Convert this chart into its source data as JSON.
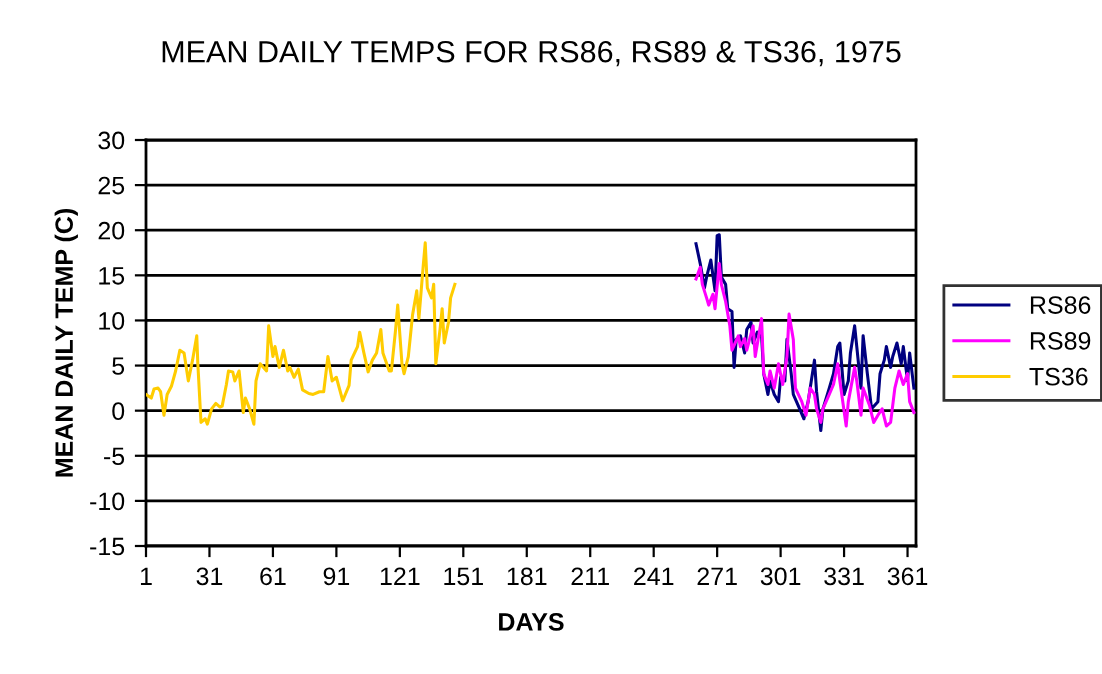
{
  "chart_data": {
    "type": "line",
    "title": "MEAN DAILY TEMPS FOR RS86, RS89 & TS36, 1975",
    "xlabel": "DAYS",
    "ylabel": "MEAN DAILY TEMP (C)",
    "xlim": [
      1,
      365
    ],
    "xticks": [
      1,
      31,
      61,
      91,
      121,
      151,
      181,
      211,
      241,
      271,
      301,
      331,
      361
    ],
    "ylim": [
      -15,
      30
    ],
    "yticks": [
      -15,
      -10,
      -5,
      0,
      5,
      10,
      15,
      20,
      25,
      30
    ],
    "grid": "y",
    "legend": "right",
    "marker": "none",
    "line_style": "solid",
    "series": [
      {
        "name": "RS86",
        "color": "#000080",
        "x": [
          261,
          263,
          265,
          266,
          268,
          270,
          271,
          272,
          273,
          275,
          276,
          278,
          279,
          280,
          282,
          284,
          285,
          287,
          288,
          290,
          292,
          293,
          295,
          296,
          298,
          300,
          301,
          303,
          304,
          306,
          307,
          310,
          312,
          314,
          317,
          318,
          320,
          321,
          324,
          326,
          328,
          329,
          331,
          333,
          334,
          336,
          337,
          339,
          340,
          342,
          344,
          347,
          348,
          350,
          351,
          353,
          354,
          356,
          358,
          359,
          361,
          362,
          364
        ],
        "values": [
          18.5,
          16.3,
          13.6,
          14.8,
          16.7,
          13.3,
          19.4,
          19.5,
          14.8,
          14.0,
          11.3,
          11.0,
          4.8,
          7.9,
          8.3,
          6.4,
          9.0,
          9.8,
          7.5,
          8.7,
          8.3,
          4.1,
          1.8,
          3.3,
          1.8,
          1.0,
          3.7,
          3.3,
          7.9,
          4.1,
          1.8,
          0.2,
          -0.9,
          1.0,
          5.6,
          2.1,
          -2.2,
          0.2,
          2.5,
          4.1,
          7.1,
          7.5,
          1.8,
          3.3,
          6.4,
          9.4,
          7.1,
          2.5,
          8.3,
          4.1,
          0.2,
          1.0,
          4.1,
          5.6,
          7.1,
          4.8,
          6.0,
          7.5,
          5.2,
          7.1,
          3.3,
          6.4,
          2.5
        ]
      },
      {
        "name": "RS89",
        "color": "#ff00ff",
        "x": [
          261,
          263,
          264,
          266,
          267,
          269,
          270,
          272,
          273,
          275,
          277,
          278,
          281,
          282,
          284,
          285,
          288,
          289,
          292,
          293,
          295,
          296,
          298,
          300,
          302,
          304,
          305,
          307,
          308,
          311,
          313,
          315,
          317,
          318,
          320,
          321,
          324,
          326,
          328,
          329,
          332,
          333,
          336,
          337,
          339,
          340,
          343,
          345,
          347,
          349,
          351,
          353,
          355,
          357,
          359,
          361,
          362,
          364
        ],
        "values": [
          14.6,
          15.9,
          14.0,
          12.5,
          11.7,
          12.9,
          11.3,
          16.3,
          14.0,
          12.1,
          9.4,
          6.7,
          8.3,
          7.1,
          8.0,
          6.7,
          9.4,
          6.0,
          10.2,
          4.1,
          2.9,
          4.4,
          2.5,
          5.2,
          2.9,
          6.0,
          10.7,
          7.9,
          2.5,
          1.0,
          -0.5,
          2.5,
          1.8,
          0.2,
          -1.3,
          0.2,
          1.8,
          2.9,
          5.2,
          3.3,
          -1.7,
          1.0,
          4.8,
          3.3,
          -0.5,
          2.5,
          0.6,
          -1.3,
          -0.5,
          0.2,
          -1.7,
          -1.3,
          2.5,
          4.4,
          2.9,
          4.1,
          1.0,
          -0.2
        ]
      },
      {
        "name": "TS36",
        "color": "#ffcc00",
        "x": [
          1,
          3.5,
          4.8,
          6.7,
          7.9,
          9.5,
          11,
          13,
          15,
          17,
          19,
          21,
          23,
          25,
          25.5,
          27,
          29,
          30,
          32,
          34,
          36,
          37,
          39,
          40,
          42,
          43,
          45,
          47,
          48,
          50,
          52,
          53,
          55,
          58,
          59,
          61,
          62,
          64,
          66,
          68,
          69,
          71,
          73,
          75,
          78,
          80,
          83,
          85,
          87,
          89,
          91,
          94,
          97,
          98,
          101,
          102,
          104,
          106,
          108,
          110,
          112,
          113,
          116,
          117,
          119,
          120,
          122,
          123,
          125,
          127,
          129,
          130,
          132,
          133,
          134,
          136,
          137,
          138,
          140,
          141,
          142,
          144,
          145,
          147
        ],
        "values": [
          1.8,
          1.4,
          2.4,
          2.5,
          2.1,
          -0.5,
          1.8,
          2.7,
          4.4,
          6.7,
          6.4,
          3.3,
          5.6,
          8.3,
          5.2,
          -1.3,
          -0.9,
          -1.5,
          0.2,
          0.8,
          0.4,
          0.5,
          2.9,
          4.4,
          4.3,
          3.3,
          4.4,
          -0.2,
          1.4,
          0.2,
          -1.5,
          3.3,
          5.2,
          4.4,
          9.4,
          6.0,
          7.1,
          4.8,
          6.7,
          4.4,
          4.8,
          3.7,
          4.6,
          2.3,
          1.9,
          1.8,
          2.1,
          2.1,
          6.0,
          3.3,
          3.7,
          1.1,
          2.8,
          5.6,
          7.1,
          8.7,
          6.4,
          4.3,
          5.6,
          6.4,
          9.0,
          6.4,
          4.4,
          4.4,
          9.0,
          11.7,
          5.2,
          4.1,
          6.0,
          10.6,
          13.3,
          10.2,
          15.9,
          18.6,
          13.6,
          12.5,
          14.0,
          5.2,
          9.0,
          11.3,
          7.5,
          9.8,
          12.5,
          14.0
        ]
      }
    ]
  }
}
